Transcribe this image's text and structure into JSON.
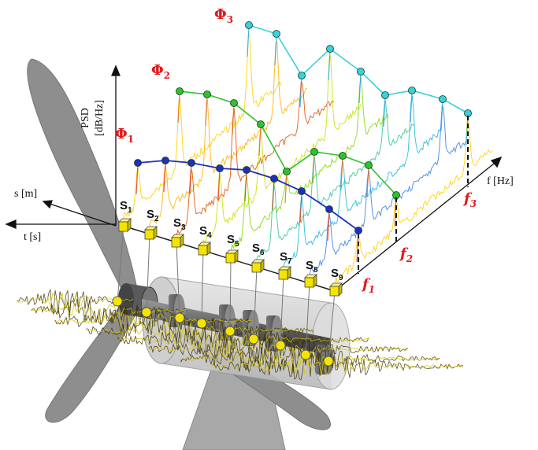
{
  "axes": {
    "psd": "PSD",
    "psd_unit": "[dB/Hz]",
    "space": "s [m]",
    "time": "t [s]",
    "frequency": "f [Hz]"
  },
  "modes": [
    {
      "symbol": "Φ",
      "index": "1"
    },
    {
      "symbol": "Φ",
      "index": "2"
    },
    {
      "symbol": "Φ",
      "index": "3"
    }
  ],
  "frequencies": [
    {
      "symbol": "f",
      "index": "1"
    },
    {
      "symbol": "f",
      "index": "2"
    },
    {
      "symbol": "f",
      "index": "3"
    }
  ],
  "sensors": [
    {
      "letter": "S",
      "index": "1"
    },
    {
      "letter": "S",
      "index": "2"
    },
    {
      "letter": "S",
      "index": "3"
    },
    {
      "letter": "S",
      "index": "4"
    },
    {
      "letter": "S",
      "index": "5"
    },
    {
      "letter": "S",
      "index": "6"
    },
    {
      "letter": "S",
      "index": "7"
    },
    {
      "letter": "S",
      "index": "8"
    },
    {
      "letter": "S",
      "index": "9"
    }
  ],
  "colors": {
    "mode1": "#1f2fbf",
    "mode2": "#2fc12f",
    "mode3": "#39d0e0",
    "label_red": "#e01b1b",
    "sensor_yellow": "#f5e400",
    "blade_gray": "#8e8e8e"
  }
}
